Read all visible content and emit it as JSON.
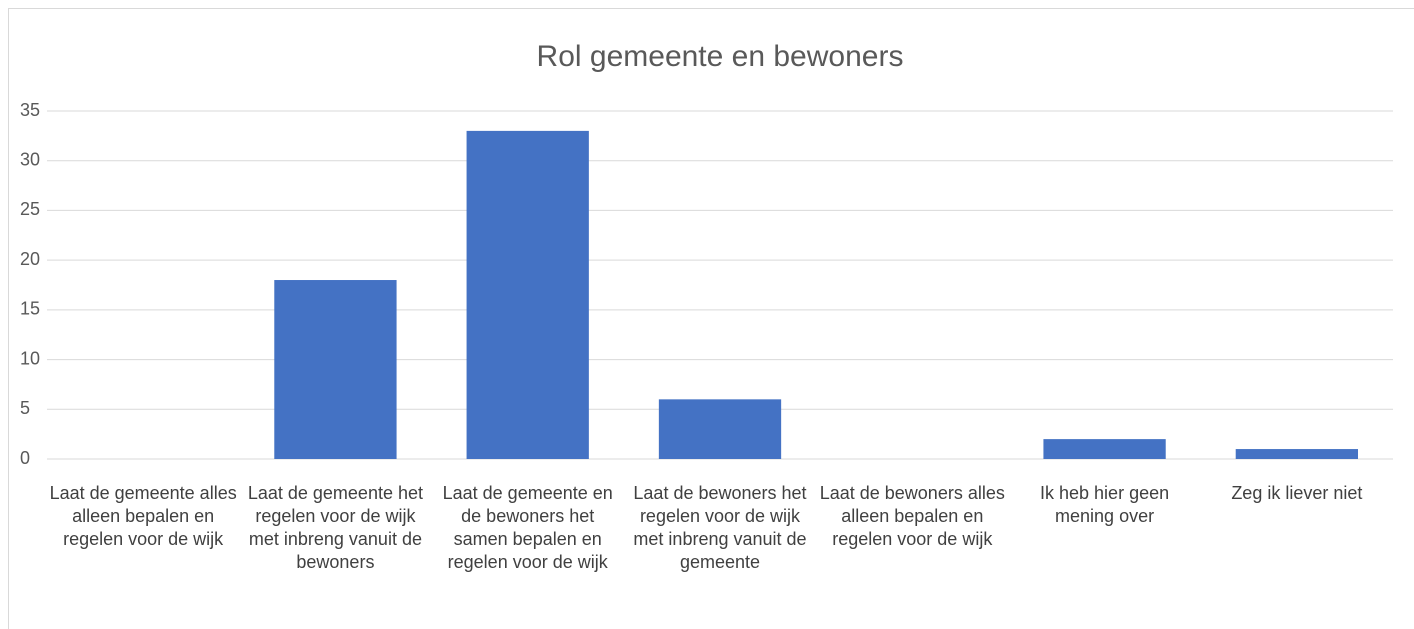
{
  "chart_data": {
    "type": "bar",
    "title": "Rol gemeente en bewoners",
    "categories": [
      "Laat de gemeente alles alleen bepalen en regelen voor de wijk",
      "Laat de gemeente het regelen voor de wijk met inbreng vanuit de bewoners",
      "Laat de gemeente en de bewoners het samen bepalen en regelen voor de wijk",
      "Laat de bewoners het regelen voor de wijk met inbreng vanuit de gemeente",
      "Laat de bewoners alles alleen bepalen en regelen voor de wijk",
      "Ik heb hier geen mening over",
      "Zeg ik liever niet"
    ],
    "values": [
      0,
      18,
      33,
      6,
      0,
      2,
      1
    ],
    "color": "#4472c4",
    "ylim": [
      0,
      35
    ],
    "yticks": [
      0,
      5,
      10,
      15,
      20,
      25,
      30,
      35
    ],
    "grid": true
  }
}
